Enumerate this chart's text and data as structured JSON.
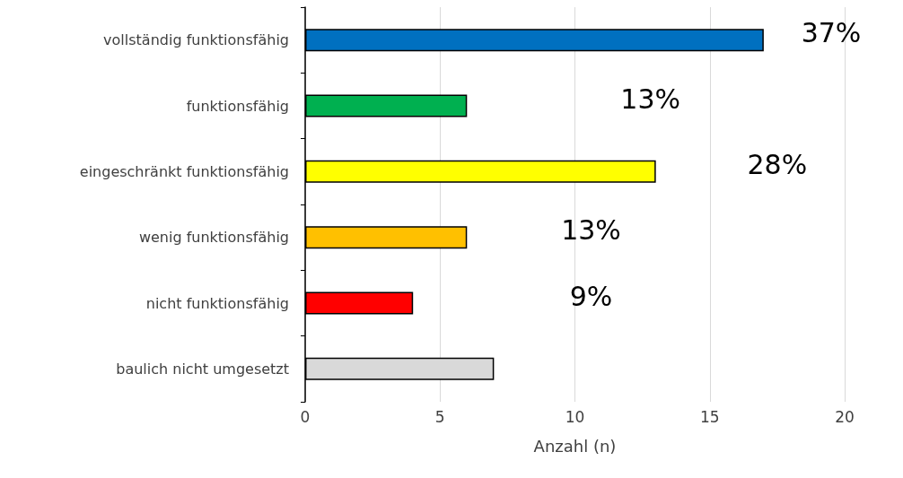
{
  "chart_data": {
    "type": "bar",
    "orientation": "horizontal",
    "xlabel": "Anzahl (n)",
    "categories": [
      "vollständig funktionsfähig",
      "funktionsfähig",
      "eingeschränkt funktionsfähig",
      "wenig funktionsfähig",
      "nicht funktionsfähig",
      "baulich nicht umgesetzt"
    ],
    "values": [
      17,
      6,
      13,
      6,
      4,
      7
    ],
    "colors": [
      "#0070c0",
      "#00b050",
      "#ffff00",
      "#ffc000",
      "#ff0000",
      "#d9d9d9"
    ],
    "annotations": [
      "37%",
      "13%",
      "28%",
      "13%",
      "9%"
    ],
    "xlim": [
      0,
      20
    ],
    "xticks": [
      0,
      5,
      10,
      15,
      20
    ],
    "grid": "x"
  }
}
